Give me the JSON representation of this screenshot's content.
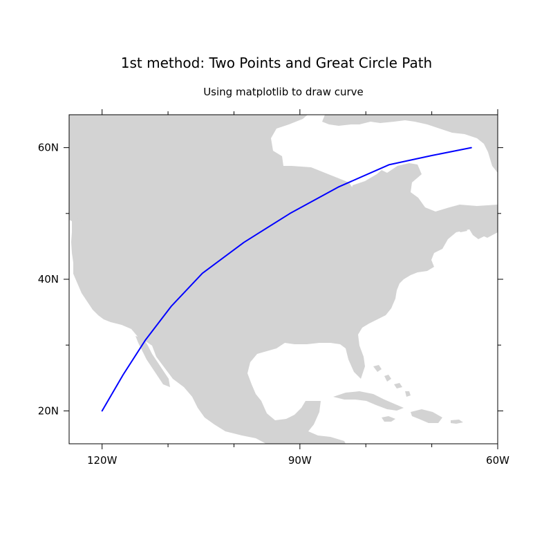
{
  "title": "1st method: Two Points and Great Circle Path",
  "subtitle": "Using matplotlib to draw curve",
  "colors": {
    "land": "#d3d3d3",
    "ocean": "#ffffff",
    "path": "#0000ff",
    "frame": "#000000"
  },
  "chart_data": {
    "type": "line",
    "projection": "cylindrical",
    "lon_range": [
      -125,
      -60
    ],
    "lat_range": [
      15,
      65
    ],
    "x_ticks": [
      {
        "value": -120,
        "label": "120W"
      },
      {
        "value": -90,
        "label": "90W"
      },
      {
        "value": -60,
        "label": "60W"
      }
    ],
    "x_minor_ticks": [
      -110,
      -100,
      -80,
      -70
    ],
    "y_ticks": [
      {
        "value": 20,
        "label": "20N"
      },
      {
        "value": 40,
        "label": "40N"
      },
      {
        "value": 60,
        "label": "60N"
      }
    ],
    "y_minor_ticks": [
      30,
      50
    ],
    "series": [
      {
        "lon": [
          -120,
          -116.8,
          -113.4,
          -109.5,
          -104.8,
          -98.5,
          -91.5,
          -84.2,
          -76.5,
          -70.0,
          -64.0
        ],
        "lat": [
          20,
          25.5,
          30.8,
          35.9,
          40.9,
          45.6,
          50.0,
          54.0,
          57.4,
          58.8,
          60
        ]
      }
    ],
    "grid": false
  }
}
